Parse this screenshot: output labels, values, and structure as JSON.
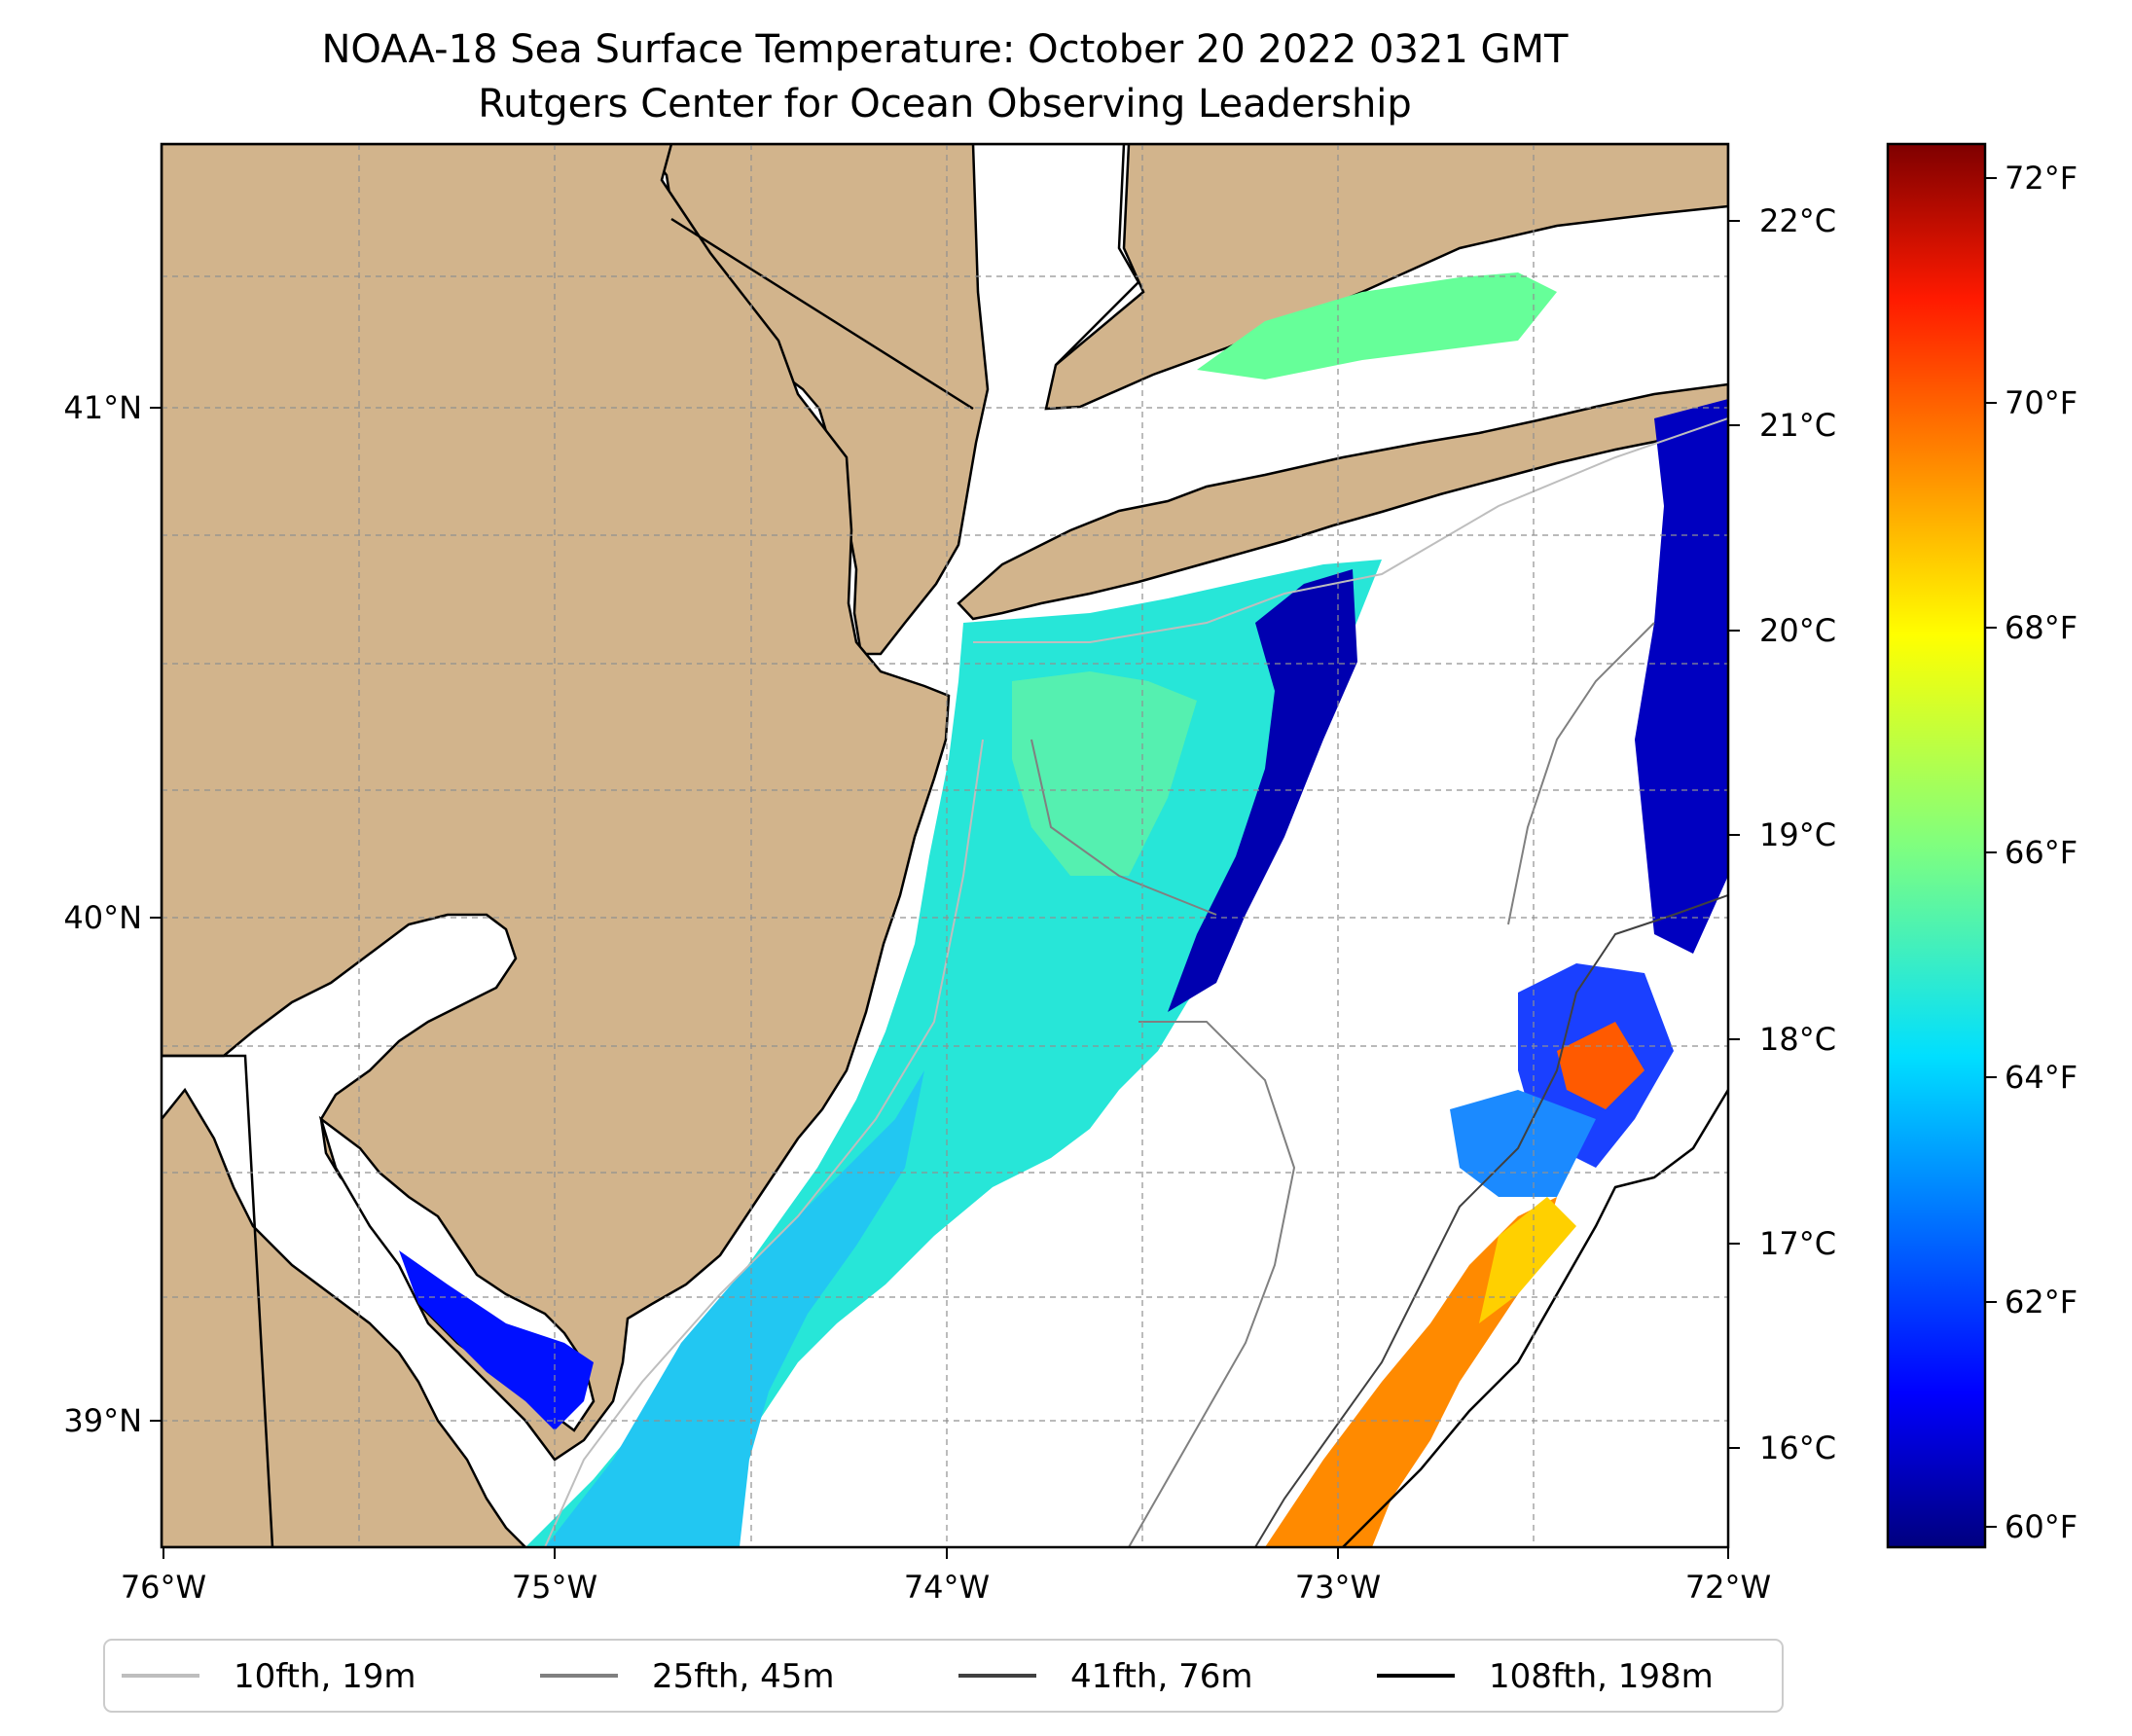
{
  "title": {
    "line1": "NOAA-18 Sea Surface Temperature: October 20 2022 0321 GMT",
    "line2": "Rutgers Center for Ocean Observing Leadership"
  },
  "map": {
    "lon_ticks": [
      "76°W",
      "75°W",
      "74°W",
      "73°W",
      "72°W"
    ],
    "lat_ticks": [
      "41°N",
      "40°N",
      "39°N"
    ],
    "lon_range": [
      -76,
      -72
    ],
    "lat_range": [
      38.75,
      41.5
    ],
    "celsius_ticks": [
      "22°C",
      "21°C",
      "20°C",
      "19°C",
      "18°C",
      "17°C",
      "16°C"
    ],
    "land_color": "#d2b48c",
    "gridlines": "dashed"
  },
  "colorbar": {
    "colormap": "jet",
    "range_f": [
      59.8,
      72.3
    ],
    "ticks": [
      "72°F",
      "70°F",
      "68°F",
      "66°F",
      "64°F",
      "62°F",
      "60°F"
    ]
  },
  "legend": {
    "placement": "bottom",
    "items": [
      {
        "label": "10fth, 19m",
        "color": "#bebebe"
      },
      {
        "label": "25fth, 45m",
        "color": "#808080"
      },
      {
        "label": "41fth, 76m",
        "color": "#404040"
      },
      {
        "label": "108fth, 198m",
        "color": "#000000"
      }
    ]
  }
}
